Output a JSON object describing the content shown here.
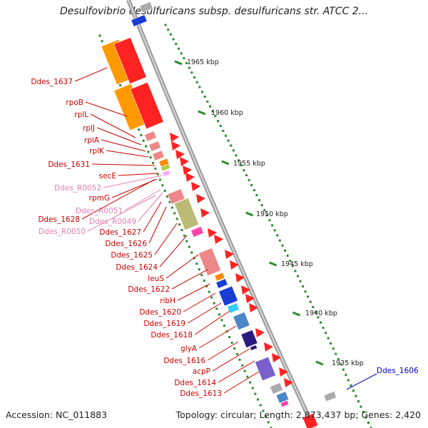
{
  "title": "Desulfovibrio desulfuricans subsp. desulfuricans str. ATCC 2...",
  "accession": "Accession: NC_011883",
  "summary": "Topology: circular; Length: 2,873,437 bp; Genes: 2,420",
  "colors": {
    "dna_ring": "#9a9a9a",
    "tick": "#2a8a2a",
    "gene_label": "#cc0000",
    "rna_label": "#e080b0",
    "highlight_label": "#0000cc"
  },
  "scale_labels": [
    "1965 kbp",
    "1960 kbp",
    "1955 kbp",
    "1950 kbp",
    "1945 kbp",
    "1940 kbp",
    "1935 kbp"
  ],
  "gene_labels": [
    {
      "text": "Ddes_1637",
      "kind": "gene"
    },
    {
      "text": "rpoB",
      "kind": "gene"
    },
    {
      "text": "rplL",
      "kind": "gene"
    },
    {
      "text": "rplJ",
      "kind": "gene"
    },
    {
      "text": "rplA",
      "kind": "gene"
    },
    {
      "text": "rplK",
      "kind": "gene"
    },
    {
      "text": "Ddes_1631",
      "kind": "gene"
    },
    {
      "text": "secE",
      "kind": "gene"
    },
    {
      "text": "Ddes_R0052",
      "kind": "rna"
    },
    {
      "text": "rpmG",
      "kind": "gene"
    },
    {
      "text": "Ddes_1628",
      "kind": "gene"
    },
    {
      "text": "Ddes_R0051",
      "kind": "rna"
    },
    {
      "text": "Ddes_R0049",
      "kind": "rna"
    },
    {
      "text": "Ddes_R0050",
      "kind": "rna"
    },
    {
      "text": "Ddes_1627",
      "kind": "gene"
    },
    {
      "text": "Ddes_1626",
      "kind": "gene"
    },
    {
      "text": "Ddes_1625",
      "kind": "gene"
    },
    {
      "text": "Ddes_1624",
      "kind": "gene"
    },
    {
      "text": "leuS",
      "kind": "gene"
    },
    {
      "text": "Ddes_1622",
      "kind": "gene"
    },
    {
      "text": "ribH",
      "kind": "gene"
    },
    {
      "text": "Ddes_1620",
      "kind": "gene"
    },
    {
      "text": "Ddes_1619",
      "kind": "gene"
    },
    {
      "text": "Ddes_1618",
      "kind": "gene"
    },
    {
      "text": "glyA",
      "kind": "gene"
    },
    {
      "text": "Ddes_1616",
      "kind": "gene"
    },
    {
      "text": "acpP",
      "kind": "gene"
    },
    {
      "text": "Ddes_1614",
      "kind": "gene"
    },
    {
      "text": "Ddes_1613",
      "kind": "gene"
    },
    {
      "text": "Ddes_1606",
      "kind": "highlight"
    }
  ]
}
